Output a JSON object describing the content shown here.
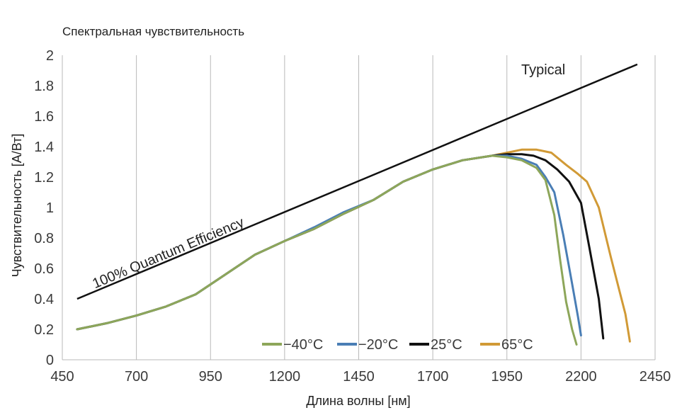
{
  "chart_data": {
    "type": "line",
    "title": "Спектральная чувствительность",
    "xlabel": "Длина волны [нм]",
    "ylabel": "Чувствительность [А/Вт]",
    "xlim": [
      450,
      2450
    ],
    "ylim": [
      0,
      2
    ],
    "xticks": [
      450,
      700,
      950,
      1200,
      1450,
      1700,
      1950,
      2200,
      2450
    ],
    "yticks": [
      0,
      0.2,
      0.4,
      0.6,
      0.8,
      1,
      1.2,
      1.4,
      1.6,
      1.8,
      2
    ],
    "ytick_labels": [
      "0",
      "0.2",
      "0.4",
      "0.6",
      "0.8",
      "1",
      "1.2",
      "1.4",
      "1.6",
      "1.8",
      "2"
    ],
    "grid": "vertical",
    "legend_position": "bottom-right",
    "annotations": {
      "qe_label": "100% Quantum Efficiency",
      "typical_label": "Typical"
    },
    "reference_line": {
      "x": [
        500,
        2390
      ],
      "y": [
        0.4,
        1.94
      ],
      "color": "#111111"
    },
    "series": [
      {
        "name": "−40°C",
        "color": "#8da65a",
        "x": [
          500,
          600,
          700,
          800,
          900,
          1000,
          1100,
          1200,
          1300,
          1400,
          1500,
          1600,
          1700,
          1800,
          1900,
          1950,
          2000,
          2050,
          2080,
          2110,
          2130,
          2150,
          2170,
          2185
        ],
        "y": [
          0.2,
          0.24,
          0.29,
          0.35,
          0.43,
          0.56,
          0.69,
          0.78,
          0.86,
          0.96,
          1.05,
          1.17,
          1.25,
          1.31,
          1.34,
          1.33,
          1.31,
          1.26,
          1.18,
          0.95,
          0.65,
          0.38,
          0.2,
          0.1
        ]
      },
      {
        "name": "−20°C",
        "color": "#4a7eb5",
        "x": [
          500,
          600,
          700,
          800,
          900,
          1000,
          1100,
          1200,
          1300,
          1400,
          1500,
          1600,
          1700,
          1800,
          1900,
          1950,
          2000,
          2050,
          2080,
          2110,
          2140,
          2170,
          2190,
          2200
        ],
        "y": [
          0.2,
          0.24,
          0.29,
          0.35,
          0.43,
          0.56,
          0.69,
          0.78,
          0.87,
          0.97,
          1.05,
          1.17,
          1.25,
          1.31,
          1.34,
          1.34,
          1.32,
          1.28,
          1.2,
          1.1,
          0.82,
          0.5,
          0.28,
          0.16
        ]
      },
      {
        "name": "25°C",
        "color": "#111111",
        "x": [
          500,
          600,
          700,
          800,
          900,
          1000,
          1100,
          1200,
          1300,
          1400,
          1500,
          1600,
          1700,
          1800,
          1900,
          1950,
          2000,
          2040,
          2080,
          2120,
          2160,
          2200,
          2230,
          2260,
          2275
        ],
        "y": [
          0.2,
          0.24,
          0.29,
          0.35,
          0.43,
          0.56,
          0.69,
          0.78,
          0.86,
          0.96,
          1.05,
          1.17,
          1.25,
          1.31,
          1.34,
          1.35,
          1.35,
          1.34,
          1.31,
          1.25,
          1.17,
          1.03,
          0.72,
          0.4,
          0.14
        ]
      },
      {
        "name": "65°C",
        "color": "#d19a36",
        "x": [
          500,
          600,
          700,
          800,
          900,
          1000,
          1100,
          1200,
          1300,
          1400,
          1500,
          1600,
          1700,
          1800,
          1900,
          1950,
          2000,
          2050,
          2100,
          2150,
          2190,
          2220,
          2260,
          2300,
          2330,
          2350,
          2365
        ],
        "y": [
          0.2,
          0.24,
          0.29,
          0.35,
          0.43,
          0.56,
          0.69,
          0.78,
          0.86,
          0.96,
          1.05,
          1.17,
          1.25,
          1.31,
          1.34,
          1.36,
          1.38,
          1.38,
          1.36,
          1.28,
          1.22,
          1.17,
          1.0,
          0.68,
          0.45,
          0.3,
          0.12
        ]
      }
    ]
  }
}
